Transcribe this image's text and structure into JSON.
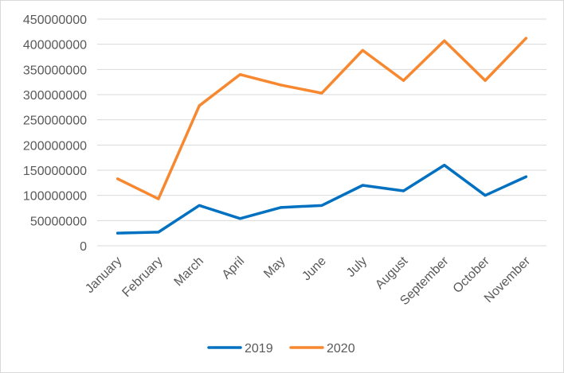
{
  "chart_data": {
    "type": "line",
    "title": "",
    "xlabel": "",
    "ylabel": "",
    "categories": [
      "January",
      "February",
      "March",
      "April",
      "May",
      "June",
      "July",
      "August",
      "September",
      "October",
      "November"
    ],
    "series": [
      {
        "name": "2019",
        "color": "#0070C0",
        "values": [
          25000000,
          27000000,
          80000000,
          54000000,
          76000000,
          80000000,
          120000000,
          109000000,
          160000000,
          100000000,
          137000000
        ]
      },
      {
        "name": "2020",
        "color": "#F7882F",
        "values": [
          133000000,
          93000000,
          278000000,
          340000000,
          319000000,
          303000000,
          388000000,
          328000000,
          407000000,
          328000000,
          412000000
        ]
      }
    ],
    "ylim": [
      0,
      450000000
    ],
    "yticks": [
      "0",
      "50000000",
      "100000000",
      "150000000",
      "200000000",
      "250000000",
      "300000000",
      "350000000",
      "400000000",
      "450000000"
    ],
    "grid": true,
    "legend": "bottom"
  }
}
